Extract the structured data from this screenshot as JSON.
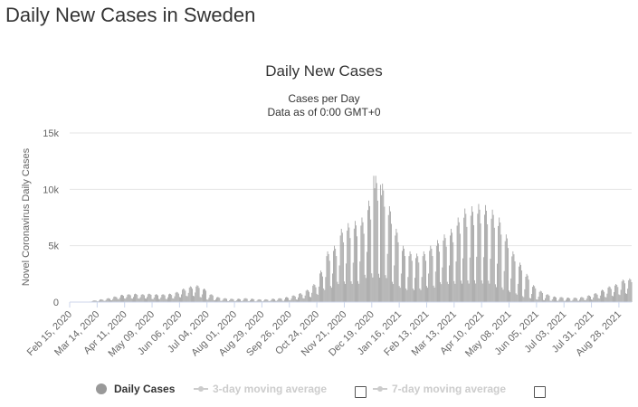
{
  "page": {
    "title": "Daily New Cases in Sweden"
  },
  "legend": {
    "items": [
      {
        "label": "Daily Cases",
        "active": true,
        "color": "#999999"
      },
      {
        "label": "3-day moving average",
        "active": false,
        "color": "#cccccc"
      },
      {
        "label": "7-day moving average",
        "active": false,
        "color": "#cccccc"
      }
    ]
  },
  "chart_data": {
    "type": "bar",
    "title": "Daily New Cases",
    "subtitle": "Cases per Day",
    "subtitle2": "Data as of 0:00 GMT+0",
    "ylabel": "Novel Coronavirus Daily Cases",
    "xlabel": "",
    "x_start": "2020-02-15",
    "x_end": "2021-09-10",
    "ylim": [
      0,
      15000
    ],
    "ytick_values": [
      0,
      5000,
      10000,
      15000
    ],
    "ytick_labels": [
      "0",
      "5k",
      "10k",
      "15k"
    ],
    "xtick_labels": [
      "Feb 15, 2020",
      "Mar 14, 2020",
      "Apr 11, 2020",
      "May 09, 2020",
      "Jun 06, 2020",
      "Jul 04, 2020",
      "Aug 01, 2020",
      "Aug 29, 2020",
      "Sep 26, 2020",
      "Oct 24, 2020",
      "Nov 21, 2020",
      "Dec 19, 2020",
      "Jan 16, 2021",
      "Feb 13, 2021",
      "Mar 13, 2021",
      "Apr 10, 2021",
      "May 08, 2021",
      "Jun 05, 2021",
      "Jul 03, 2021",
      "Jul 31, 2021",
      "Aug 28, 2021"
    ],
    "grid": true,
    "bar_color": "#999999",
    "weekly_values": [
      {
        "week_of": "2020-02-15",
        "high": 0,
        "low": 0
      },
      {
        "week_of": "2020-02-22",
        "high": 0,
        "low": 0
      },
      {
        "week_of": "2020-02-29",
        "high": 40,
        "low": 0
      },
      {
        "week_of": "2020-03-07",
        "high": 150,
        "low": 40
      },
      {
        "week_of": "2020-03-14",
        "high": 250,
        "low": 60
      },
      {
        "week_of": "2020-03-21",
        "high": 350,
        "low": 100
      },
      {
        "week_of": "2020-03-28",
        "high": 500,
        "low": 150
      },
      {
        "week_of": "2020-04-04",
        "high": 650,
        "low": 250
      },
      {
        "week_of": "2020-04-11",
        "high": 700,
        "low": 300
      },
      {
        "week_of": "2020-04-18",
        "high": 750,
        "low": 300
      },
      {
        "week_of": "2020-04-25",
        "high": 700,
        "low": 300
      },
      {
        "week_of": "2020-05-02",
        "high": 750,
        "low": 300
      },
      {
        "week_of": "2020-05-09",
        "high": 700,
        "low": 250
      },
      {
        "week_of": "2020-05-16",
        "high": 700,
        "low": 250
      },
      {
        "week_of": "2020-05-23",
        "high": 750,
        "low": 250
      },
      {
        "week_of": "2020-05-30",
        "high": 900,
        "low": 300
      },
      {
        "week_of": "2020-06-06",
        "high": 1200,
        "low": 400
      },
      {
        "week_of": "2020-06-13",
        "high": 1400,
        "low": 500
      },
      {
        "week_of": "2020-06-20",
        "high": 1500,
        "low": 500
      },
      {
        "week_of": "2020-06-27",
        "high": 1200,
        "low": 400
      },
      {
        "week_of": "2020-07-04",
        "high": 700,
        "low": 200
      },
      {
        "week_of": "2020-07-11",
        "high": 450,
        "low": 150
      },
      {
        "week_of": "2020-07-18",
        "high": 350,
        "low": 100
      },
      {
        "week_of": "2020-07-25",
        "high": 300,
        "low": 80
      },
      {
        "week_of": "2020-08-01",
        "high": 300,
        "low": 80
      },
      {
        "week_of": "2020-08-08",
        "high": 350,
        "low": 80
      },
      {
        "week_of": "2020-08-15",
        "high": 300,
        "low": 80
      },
      {
        "week_of": "2020-08-22",
        "high": 250,
        "low": 60
      },
      {
        "week_of": "2020-08-29",
        "high": 250,
        "low": 60
      },
      {
        "week_of": "2020-09-05",
        "high": 300,
        "low": 80
      },
      {
        "week_of": "2020-09-12",
        "high": 350,
        "low": 100
      },
      {
        "week_of": "2020-09-19",
        "high": 450,
        "low": 100
      },
      {
        "week_of": "2020-09-26",
        "high": 600,
        "low": 150
      },
      {
        "week_of": "2020-10-03",
        "high": 800,
        "low": 200
      },
      {
        "week_of": "2020-10-10",
        "high": 1100,
        "low": 300
      },
      {
        "week_of": "2020-10-17",
        "high": 1600,
        "low": 400
      },
      {
        "week_of": "2020-10-24",
        "high": 2800,
        "low": 600
      },
      {
        "week_of": "2020-10-31",
        "high": 4500,
        "low": 1000
      },
      {
        "week_of": "2020-11-07",
        "high": 5000,
        "low": 1200
      },
      {
        "week_of": "2020-11-14",
        "high": 6500,
        "low": 1500
      },
      {
        "week_of": "2020-11-21",
        "high": 7000,
        "low": 1500
      },
      {
        "week_of": "2020-11-28",
        "high": 7200,
        "low": 1500
      },
      {
        "week_of": "2020-12-05",
        "high": 7500,
        "low": 1500
      },
      {
        "week_of": "2020-12-12",
        "high": 9000,
        "low": 2000
      },
      {
        "week_of": "2020-12-19",
        "high": 11200,
        "low": 2000
      },
      {
        "week_of": "2020-12-26",
        "high": 10500,
        "low": 2000
      },
      {
        "week_of": "2021-01-02",
        "high": 8500,
        "low": 2000
      },
      {
        "week_of": "2021-01-09",
        "high": 6500,
        "low": 1500
      },
      {
        "week_of": "2021-01-16",
        "high": 5000,
        "low": 1200
      },
      {
        "week_of": "2021-01-23",
        "high": 4500,
        "low": 1000
      },
      {
        "week_of": "2021-01-30",
        "high": 4300,
        "low": 1000
      },
      {
        "week_of": "2021-02-06",
        "high": 4500,
        "low": 1000
      },
      {
        "week_of": "2021-02-13",
        "high": 5000,
        "low": 1200
      },
      {
        "week_of": "2021-02-20",
        "high": 5500,
        "low": 1200
      },
      {
        "week_of": "2021-02-27",
        "high": 6000,
        "low": 1500
      },
      {
        "week_of": "2021-03-06",
        "high": 6500,
        "low": 1500
      },
      {
        "week_of": "2021-03-13",
        "high": 7500,
        "low": 1500
      },
      {
        "week_of": "2021-03-20",
        "high": 8300,
        "low": 1500
      },
      {
        "week_of": "2021-03-27",
        "high": 8500,
        "low": 1500
      },
      {
        "week_of": "2021-04-03",
        "high": 8700,
        "low": 1500
      },
      {
        "week_of": "2021-04-10",
        "high": 8600,
        "low": 1500
      },
      {
        "week_of": "2021-04-17",
        "high": 8200,
        "low": 1500
      },
      {
        "week_of": "2021-04-24",
        "high": 7500,
        "low": 1200
      },
      {
        "week_of": "2021-05-01",
        "high": 6000,
        "low": 1000
      },
      {
        "week_of": "2021-05-08",
        "high": 4500,
        "low": 800
      },
      {
        "week_of": "2021-05-15",
        "high": 3500,
        "low": 600
      },
      {
        "week_of": "2021-05-22",
        "high": 2500,
        "low": 400
      },
      {
        "week_of": "2021-05-29",
        "high": 1500,
        "low": 300
      },
      {
        "week_of": "2021-06-05",
        "high": 1000,
        "low": 200
      },
      {
        "week_of": "2021-06-12",
        "high": 700,
        "low": 150
      },
      {
        "week_of": "2021-06-19",
        "high": 500,
        "low": 100
      },
      {
        "week_of": "2021-06-26",
        "high": 450,
        "low": 100
      },
      {
        "week_of": "2021-07-03",
        "high": 400,
        "low": 100
      },
      {
        "week_of": "2021-07-10",
        "high": 400,
        "low": 100
      },
      {
        "week_of": "2021-07-17",
        "high": 450,
        "low": 100
      },
      {
        "week_of": "2021-07-24",
        "high": 600,
        "low": 150
      },
      {
        "week_of": "2021-07-31",
        "high": 800,
        "low": 200
      },
      {
        "week_of": "2021-08-07",
        "high": 1100,
        "low": 300
      },
      {
        "week_of": "2021-08-14",
        "high": 1400,
        "low": 400
      },
      {
        "week_of": "2021-08-21",
        "high": 1600,
        "low": 500
      },
      {
        "week_of": "2021-08-28",
        "high": 2000,
        "low": 600
      },
      {
        "week_of": "2021-09-04",
        "high": 2100,
        "low": 700
      }
    ],
    "peaks": [
      {
        "date": "2020-12-21",
        "value": 11200
      },
      {
        "date": "2020-12-28",
        "value": 10400
      }
    ]
  }
}
